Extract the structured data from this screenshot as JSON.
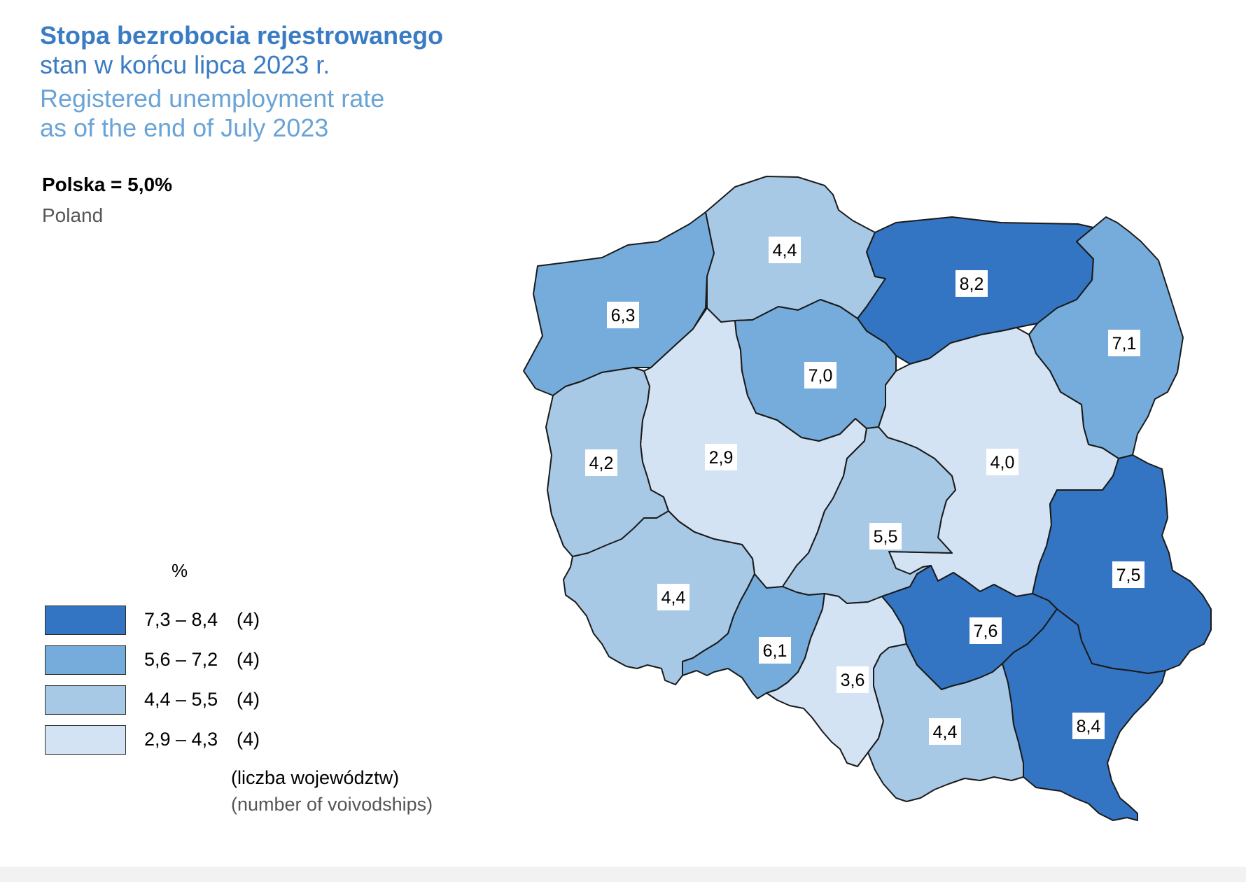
{
  "header": {
    "title_pl": "Stopa bezrobocia rejestrowanego",
    "subtitle_pl": "stan w końcu lipca 2023 r.",
    "title_en_1": "Registered unemployment rate",
    "title_en_2": "as of the end of July 2023"
  },
  "total": {
    "label_pl": "Polska = 5,0%",
    "label_en": "Poland"
  },
  "legend": {
    "unit": "%",
    "classes": [
      {
        "range": "7,3 – 8,4",
        "count": "(4)",
        "color": "#3375c2"
      },
      {
        "range": "5,6 – 7,2",
        "count": "(4)",
        "color": "#76acdb"
      },
      {
        "range": "4,4 – 5,5",
        "count": "(4)",
        "color": "#a7c9e6"
      },
      {
        "range": "2,9 – 4,3",
        "count": "(4)",
        "color": "#d3e3f3"
      }
    ],
    "note_pl": "(liczba województw)",
    "note_en": "(number of voivodships)"
  },
  "regions": [
    {
      "id": "zachodniopomorskie",
      "value": "6,3",
      "class": 1
    },
    {
      "id": "pomorskie",
      "value": "4,4",
      "class": 2
    },
    {
      "id": "warminsko-mazurskie",
      "value": "8,2",
      "class": 0
    },
    {
      "id": "podlaskie",
      "value": "7,1",
      "class": 1
    },
    {
      "id": "lubuskie",
      "value": "4,2",
      "class": 3
    },
    {
      "id": "wielkopolskie",
      "value": "2,9",
      "class": 3
    },
    {
      "id": "kujawsko-pomorskie",
      "value": "7,0",
      "class": 1
    },
    {
      "id": "mazowieckie",
      "value": "4,0",
      "class": 3
    },
    {
      "id": "lodzkie",
      "value": "5,5",
      "class": 2
    },
    {
      "id": "lubelskie",
      "value": "7,5",
      "class": 0
    },
    {
      "id": "dolnoslaskie",
      "value": "4,4",
      "class": 2
    },
    {
      "id": "opolskie",
      "value": "6,1",
      "class": 1
    },
    {
      "id": "slaskie",
      "value": "3,6",
      "class": 3
    },
    {
      "id": "swietokrzyskie",
      "value": "7,6",
      "class": 0
    },
    {
      "id": "malopolskie",
      "value": "4,4",
      "class": 2
    },
    {
      "id": "podkarpackie",
      "value": "8,4",
      "class": 0
    }
  ]
}
